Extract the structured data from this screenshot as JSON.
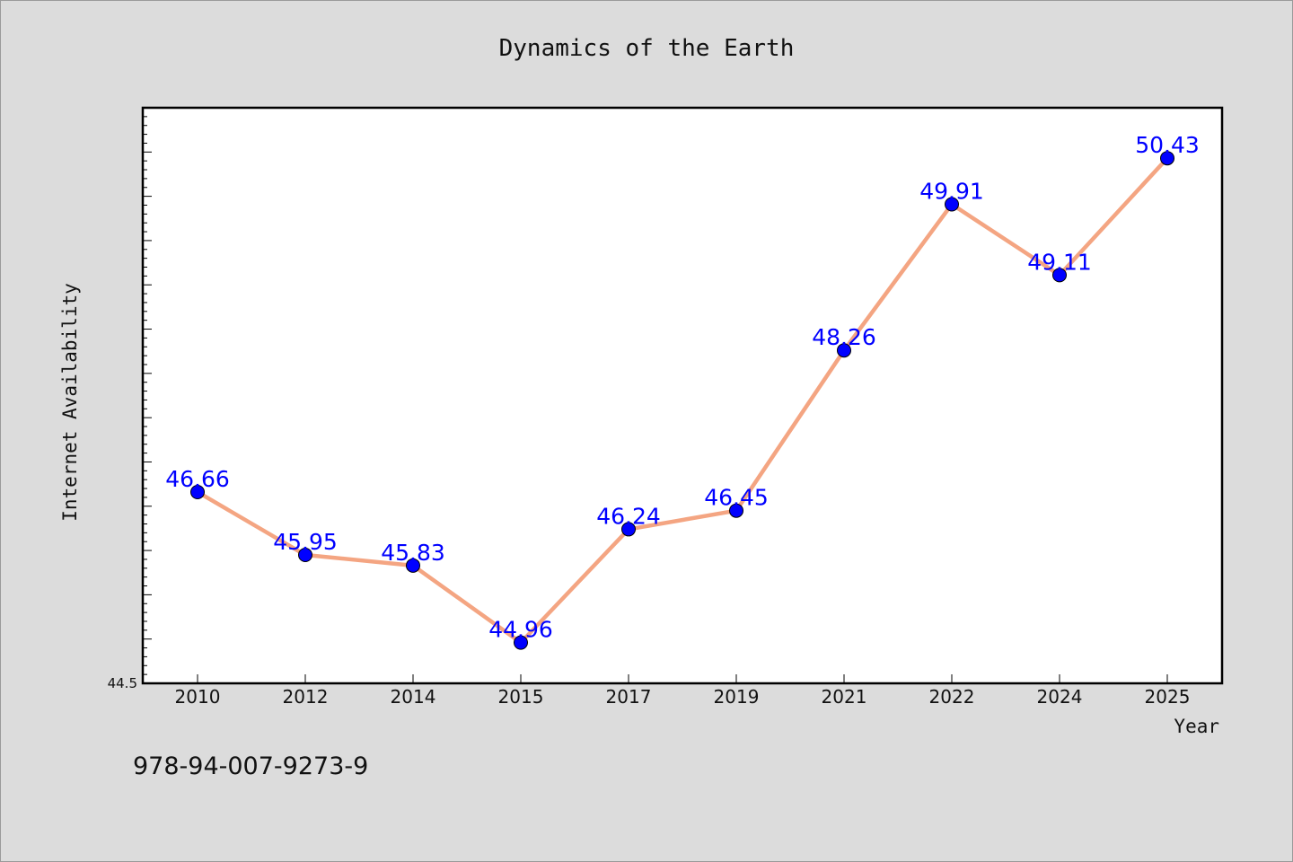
{
  "chart_data": {
    "type": "line",
    "title": "Dynamics of the Earth",
    "xlabel": "Year",
    "ylabel": "Internet Availability",
    "categories": [
      "2010",
      "2012",
      "2014",
      "2015",
      "2017",
      "2019",
      "2021",
      "2022",
      "2024",
      "2025"
    ],
    "series": [
      {
        "values": [
          46.66,
          45.95,
          45.83,
          44.96,
          46.24,
          46.45,
          48.26,
          49.91,
          49.11,
          50.43
        ]
      }
    ],
    "data_labels": [
      "46.66",
      "45.95",
      "45.83",
      "44.96",
      "46.24",
      "46.45",
      "48.26",
      "49.91",
      "49.11",
      "50.43"
    ],
    "ylim": [
      44.5,
      51.0
    ],
    "y_tick_labels": [
      "44.5"
    ],
    "y_minor_step": 0.1,
    "y_major_step": 0.5,
    "grid": false,
    "legend": "none",
    "colors": {
      "line": "#f4a582",
      "marker": "#0000ff",
      "label": "#0000ff",
      "plot_bg": "#ffffff",
      "page_bg": "#dcdcdc"
    }
  },
  "footer": {
    "isbn": "978-94-007-9273-9"
  }
}
